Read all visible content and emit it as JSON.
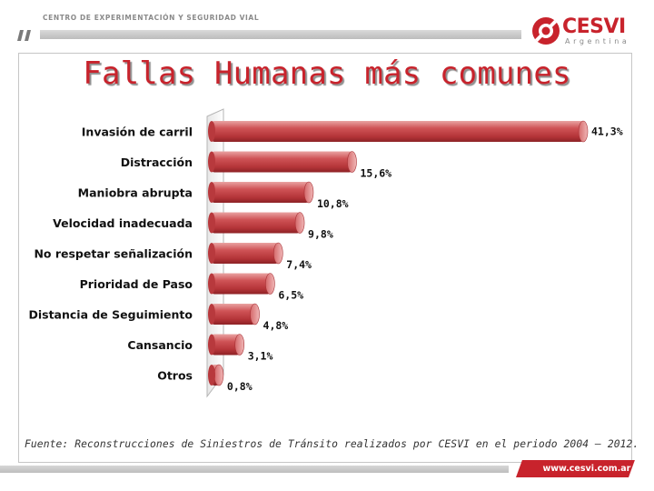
{
  "header": {
    "org_name": "CENTRO DE EXPERIMENTACIÓN Y SEGURIDAD VIAL"
  },
  "logo": {
    "name": "CESVI",
    "subtitle": "Argentina"
  },
  "chart_data": {
    "type": "bar",
    "orientation": "horizontal",
    "title": "Fallas Humanas más comunes",
    "categories": [
      "Invasión de carril",
      "Distracción",
      "Maniobra abrupta",
      "Velocidad inadecuada",
      "No respetar señalización",
      "Prioridad de Paso",
      "Distancia de Seguimiento",
      "Cansancio",
      "Otros"
    ],
    "values": [
      41.3,
      15.6,
      10.8,
      9.8,
      7.4,
      6.5,
      4.8,
      3.1,
      0.8
    ],
    "value_labels": [
      "41,3%",
      "15,6%",
      "10,8%",
      "9,8%",
      "7,4%",
      "6,5%",
      "4,8%",
      "3,1%",
      "0,8%"
    ],
    "bar_color": "#c9464a",
    "xlim": [
      0,
      41.3
    ],
    "grid": false,
    "legend": "none"
  },
  "source_note": "Fuente: Reconstrucciones de Siniestros de Tránsito realizados por CESVI en el periodo 2004 – 2012.",
  "footer": {
    "url": "www.cesvi.com.ar"
  }
}
